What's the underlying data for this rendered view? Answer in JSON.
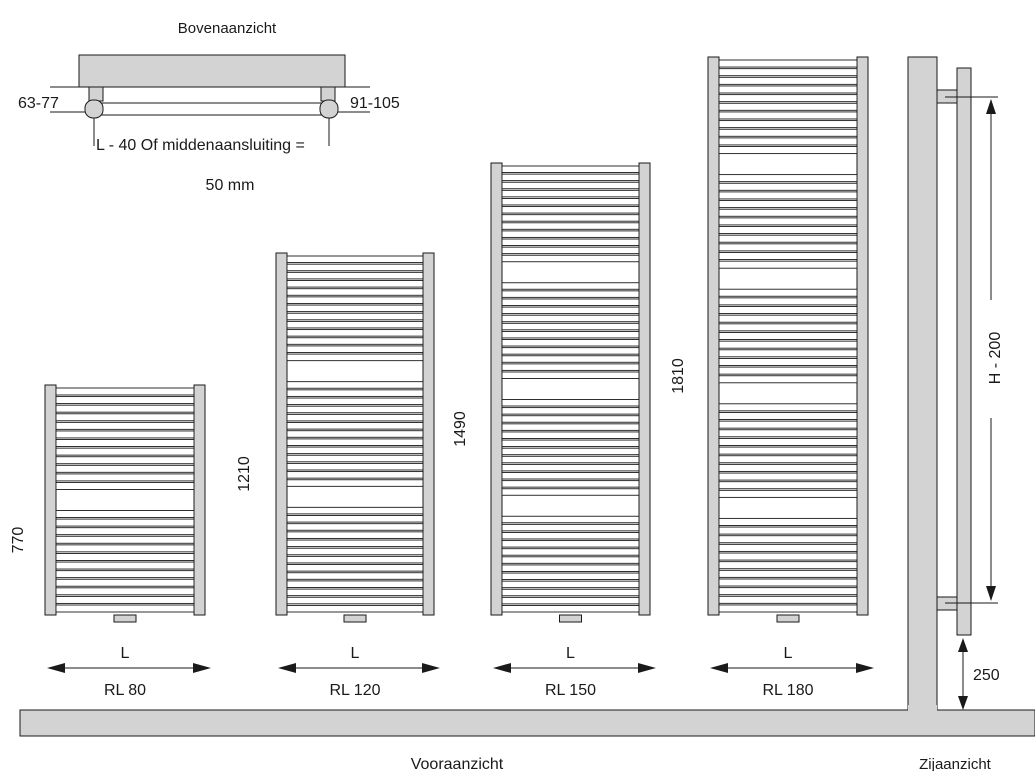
{
  "top_view": {
    "title": "Bovenaanzicht",
    "left_dim": "63-77",
    "right_dim": "91-105",
    "note_line1": "L - 40 Of middenaansluiting =",
    "note_line2": "50 mm"
  },
  "front_view": {
    "title": "Vooraanzicht",
    "radiators": [
      {
        "height_label": "770",
        "width_label": "L",
        "model": "RL 80"
      },
      {
        "height_label": "1210",
        "width_label": "L",
        "model": "RL 120"
      },
      {
        "height_label": "1490",
        "width_label": "L",
        "model": "RL 150"
      },
      {
        "height_label": "1810",
        "width_label": "L",
        "model": "RL 180"
      }
    ]
  },
  "side_view": {
    "title": "Zijaanzicht",
    "height_dim": "H - 200",
    "floor_dim": "250"
  },
  "colors": {
    "fill": "#d3d3d3",
    "stroke": "#1a1a1a"
  }
}
